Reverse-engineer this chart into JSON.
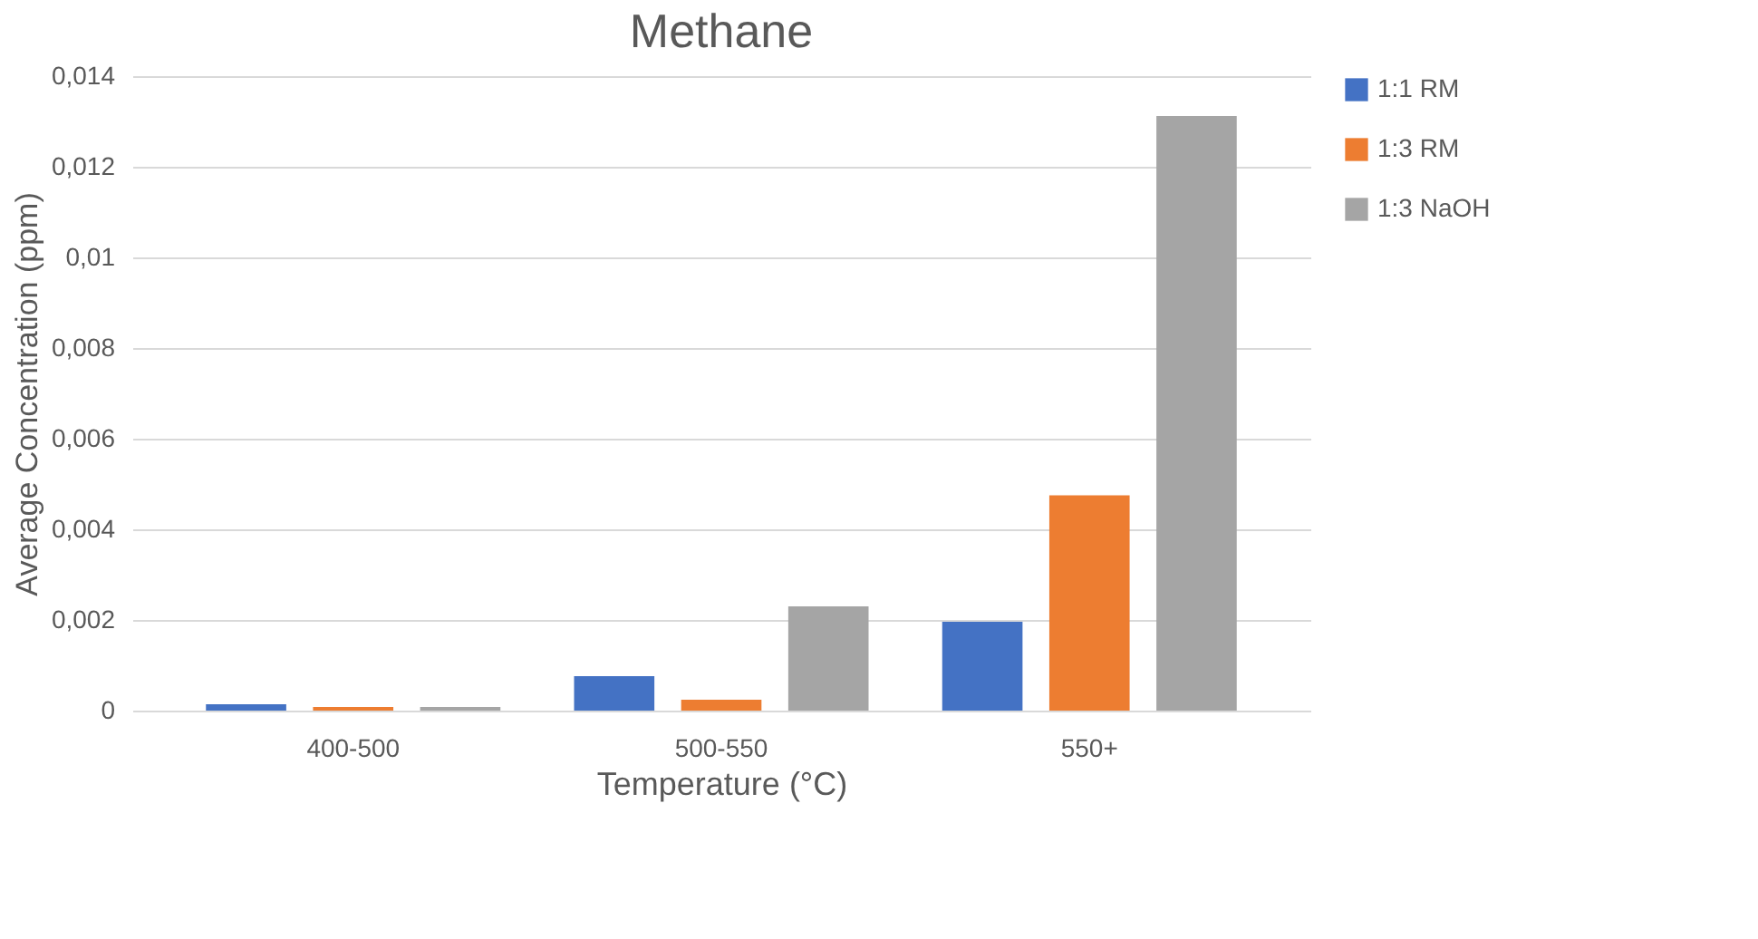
{
  "chart_data": {
    "type": "bar",
    "title": "Methane",
    "xlabel": "Temperature (°C)",
    "ylabel": "Average Concentration (ppm)",
    "categories": [
      "400-500",
      "500-550",
      "550+"
    ],
    "series": [
      {
        "name": "1:1 RM",
        "color": "#4472c4",
        "values": [
          0.00014,
          0.00076,
          0.00196
        ]
      },
      {
        "name": "1:3 RM",
        "color": "#ed7d31",
        "values": [
          8e-05,
          0.00024,
          0.00475
        ]
      },
      {
        "name": "1:3 NaOH",
        "color": "#a5a5a5",
        "values": [
          8e-05,
          0.0023,
          0.01312
        ]
      }
    ],
    "ylim": [
      0,
      0.014
    ],
    "yticks": [
      0,
      {
        "value": 0.002,
        "label": "0,002"
      },
      {
        "value": 0.004,
        "label": "0,004"
      },
      {
        "value": 0.006,
        "label": "0,006"
      },
      {
        "value": 0.008,
        "label": "0,008"
      },
      {
        "value": 0.01,
        "label": "0,01"
      },
      {
        "value": 0.012,
        "label": "0,012"
      },
      {
        "value": 0.014,
        "label": "0,014"
      }
    ],
    "grid": "y",
    "legend": "right"
  }
}
